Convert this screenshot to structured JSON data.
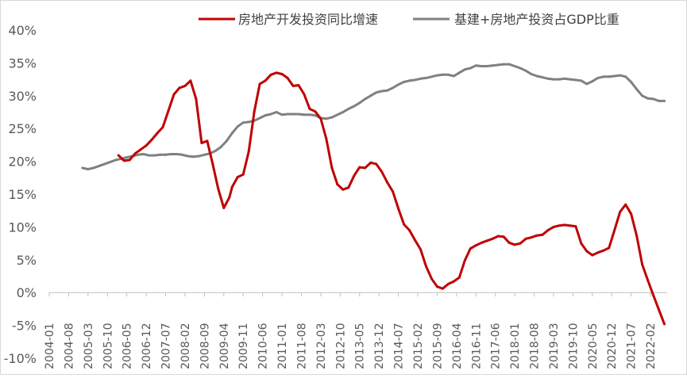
{
  "chart_data": {
    "type": "line",
    "title": "",
    "xlabel": "",
    "ylabel": "",
    "ylim": [
      -10,
      40
    ],
    "yticks": [
      "-10%",
      "-5%",
      "0%",
      "5%",
      "10%",
      "15%",
      "20%",
      "25%",
      "30%",
      "35%",
      "40%"
    ],
    "x_tick_labels": [
      "2004-01",
      "2004-08",
      "2005-03",
      "2005-10",
      "2006-05",
      "2006-12",
      "2007-07",
      "2008-02",
      "2008-09",
      "2009-04",
      "2009-11",
      "2010-06",
      "2011-01",
      "2011-08",
      "2012-03",
      "2012-10",
      "2013-05",
      "2013-12",
      "2014-07",
      "2015-02",
      "2015-09",
      "2016-04",
      "2016-11",
      "2017-06",
      "2018-01",
      "2018-08",
      "2019-03",
      "2019-10",
      "2020-05",
      "2020-12",
      "2021-07",
      "2022-02"
    ],
    "x_start": "2004-01",
    "grid": false,
    "legend_position": "top",
    "series": [
      {
        "name": "房地产开发投资同比增速",
        "color": "#C00000",
        "x": [
          "2006-02",
          "2006-04",
          "2006-06",
          "2006-08",
          "2006-10",
          "2006-12",
          "2007-02",
          "2007-04",
          "2007-06",
          "2007-08",
          "2007-10",
          "2007-12",
          "2008-02",
          "2008-04",
          "2008-06",
          "2008-08",
          "2008-10",
          "2008-12",
          "2009-02",
          "2009-04",
          "2009-06",
          "2009-07",
          "2009-09",
          "2009-11",
          "2010-01",
          "2010-03",
          "2010-05",
          "2010-07",
          "2010-09",
          "2010-11",
          "2011-01",
          "2011-03",
          "2011-05",
          "2011-07",
          "2011-09",
          "2011-11",
          "2012-01",
          "2012-03",
          "2012-05",
          "2012-07",
          "2012-09",
          "2012-11",
          "2013-01",
          "2013-03",
          "2013-05",
          "2013-07",
          "2013-09",
          "2013-11",
          "2014-01",
          "2014-03",
          "2014-05",
          "2014-07",
          "2014-09",
          "2014-11",
          "2015-01",
          "2015-03",
          "2015-05",
          "2015-07",
          "2015-09",
          "2015-11",
          "2016-01",
          "2016-03",
          "2016-05",
          "2016-07",
          "2016-09",
          "2016-11",
          "2017-01",
          "2017-03",
          "2017-05",
          "2017-07",
          "2017-09",
          "2017-11",
          "2018-01",
          "2018-03",
          "2018-05",
          "2018-07",
          "2018-09",
          "2018-11",
          "2019-01",
          "2019-03",
          "2019-05",
          "2019-07",
          "2019-09",
          "2019-11",
          "2020-01",
          "2020-03",
          "2020-05",
          "2020-07",
          "2020-09",
          "2020-11",
          "2021-01",
          "2021-03",
          "2021-05",
          "2021-07",
          "2021-09",
          "2021-11",
          "2022-01",
          "2022-03",
          "2022-05",
          "2022-07"
        ],
        "values": [
          20.9,
          20.1,
          20.2,
          21.2,
          21.8,
          22.4,
          23.3,
          24.3,
          25.2,
          27.7,
          30.2,
          31.2,
          31.5,
          32.3,
          29.5,
          22.8,
          23.1,
          19.6,
          15.8,
          12.9,
          14.5,
          16.1,
          17.6,
          18.0,
          21.5,
          27.6,
          31.8,
          32.3,
          33.2,
          33.5,
          33.3,
          32.7,
          31.5,
          31.6,
          30.2,
          28.0,
          27.6,
          26.5,
          23.4,
          19.0,
          16.5,
          15.7,
          16.0,
          17.8,
          19.1,
          19.0,
          19.8,
          19.6,
          18.4,
          16.8,
          15.4,
          12.8,
          10.4,
          9.5,
          8.0,
          6.6,
          4.0,
          2.1,
          0.9,
          0.6,
          1.3,
          1.7,
          2.3,
          4.9,
          6.7,
          7.2,
          7.6,
          7.9,
          8.2,
          8.6,
          8.5,
          7.6,
          7.3,
          7.5,
          8.2,
          8.4,
          8.7,
          8.8,
          9.5,
          10.0,
          10.2,
          10.3,
          10.2,
          10.1,
          7.5,
          6.3,
          5.7,
          6.1,
          6.4,
          6.8,
          9.5,
          12.3,
          13.4,
          12.0,
          8.7,
          4.3,
          1.9,
          -0.4,
          -2.6,
          -4.8
        ]
      },
      {
        "name": "基建+房地产投资占GDP比重",
        "color": "#808080",
        "x": [
          "2005-01",
          "2005-03",
          "2005-05",
          "2005-07",
          "2005-09",
          "2005-11",
          "2006-01",
          "2006-03",
          "2006-05",
          "2006-07",
          "2006-09",
          "2006-11",
          "2007-01",
          "2007-03",
          "2007-05",
          "2007-07",
          "2007-09",
          "2007-11",
          "2008-01",
          "2008-03",
          "2008-05",
          "2008-07",
          "2008-09",
          "2008-11",
          "2009-01",
          "2009-03",
          "2009-05",
          "2009-07",
          "2009-09",
          "2009-11",
          "2010-01",
          "2010-03",
          "2010-05",
          "2010-07",
          "2010-09",
          "2010-11",
          "2011-01",
          "2011-03",
          "2011-05",
          "2011-07",
          "2011-09",
          "2011-11",
          "2012-01",
          "2012-03",
          "2012-05",
          "2012-07",
          "2012-09",
          "2012-11",
          "2013-01",
          "2013-03",
          "2013-05",
          "2013-07",
          "2013-09",
          "2013-11",
          "2014-01",
          "2014-03",
          "2014-05",
          "2014-07",
          "2014-09",
          "2014-11",
          "2015-01",
          "2015-03",
          "2015-05",
          "2015-07",
          "2015-09",
          "2015-11",
          "2016-01",
          "2016-03",
          "2016-05",
          "2016-07",
          "2016-09",
          "2016-11",
          "2017-01",
          "2017-03",
          "2017-05",
          "2017-07",
          "2017-09",
          "2017-11",
          "2018-01",
          "2018-03",
          "2018-05",
          "2018-07",
          "2018-09",
          "2018-11",
          "2019-01",
          "2019-03",
          "2019-05",
          "2019-07",
          "2019-09",
          "2019-11",
          "2020-01",
          "2020-03",
          "2020-05",
          "2020-07",
          "2020-09",
          "2020-11",
          "2021-01",
          "2021-03",
          "2021-05",
          "2021-07",
          "2021-09",
          "2021-11",
          "2022-01",
          "2022-03",
          "2022-05",
          "2022-07"
        ],
        "values": [
          19.0,
          18.8,
          19.0,
          19.3,
          19.6,
          19.9,
          20.2,
          20.4,
          20.6,
          20.8,
          21.0,
          21.1,
          20.9,
          20.9,
          21.0,
          21.0,
          21.1,
          21.1,
          21.0,
          20.8,
          20.7,
          20.8,
          21.0,
          21.2,
          21.6,
          22.2,
          23.1,
          24.3,
          25.3,
          25.9,
          26.0,
          26.2,
          26.6,
          27.0,
          27.2,
          27.5,
          27.1,
          27.2,
          27.2,
          27.2,
          27.1,
          27.1,
          27.0,
          26.6,
          26.5,
          26.7,
          27.1,
          27.5,
          28.0,
          28.4,
          28.9,
          29.5,
          30.0,
          30.5,
          30.7,
          30.8,
          31.2,
          31.7,
          32.1,
          32.3,
          32.4,
          32.6,
          32.7,
          32.9,
          33.1,
          33.2,
          33.2,
          33.0,
          33.5,
          34.0,
          34.2,
          34.6,
          34.5,
          34.5,
          34.6,
          34.7,
          34.8,
          34.8,
          34.5,
          34.2,
          33.8,
          33.3,
          33.0,
          32.8,
          32.6,
          32.5,
          32.5,
          32.6,
          32.5,
          32.4,
          32.3,
          31.8,
          32.2,
          32.7,
          32.9,
          32.9,
          33.0,
          33.1,
          32.9,
          32.1,
          31.0,
          30.0,
          29.6,
          29.5,
          29.2,
          29.2
        ]
      }
    ]
  }
}
